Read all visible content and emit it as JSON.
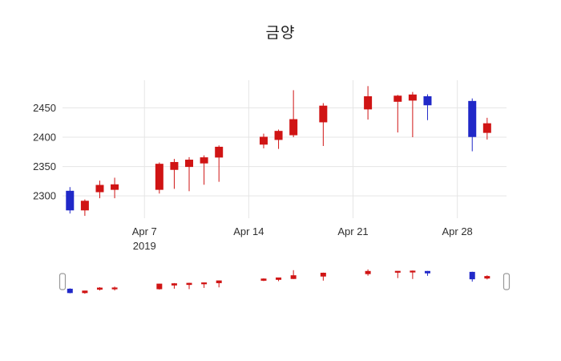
{
  "chart_data": {
    "type": "candlestick",
    "title": "금양",
    "x": [
      "2019-04-02",
      "2019-04-03",
      "2019-04-04",
      "2019-04-05",
      "2019-04-08",
      "2019-04-09",
      "2019-04-10",
      "2019-04-11",
      "2019-04-12",
      "2019-04-15",
      "2019-04-16",
      "2019-04-17",
      "2019-04-19",
      "2019-04-22",
      "2019-04-24",
      "2019-04-25",
      "2019-04-26",
      "2019-04-29",
      "2019-04-30"
    ],
    "open": [
      2308,
      2276,
      2307,
      2311,
      2311,
      2345,
      2350,
      2356,
      2366,
      2388,
      2396,
      2404,
      2426,
      2448,
      2461,
      2463,
      2469,
      2461,
      2408
    ],
    "high": [
      2315,
      2294,
      2326,
      2331,
      2357,
      2363,
      2366,
      2369,
      2386,
      2406,
      2413,
      2480,
      2458,
      2487,
      2472,
      2477,
      2473,
      2466,
      2433
    ],
    "low": [
      2270,
      2266,
      2296,
      2296,
      2304,
      2312,
      2308,
      2319,
      2324,
      2381,
      2380,
      2400,
      2385,
      2430,
      2408,
      2400,
      2429,
      2376,
      2396
    ],
    "close": [
      2276,
      2291,
      2318,
      2319,
      2354,
      2357,
      2361,
      2365,
      2383,
      2400,
      2410,
      2430,
      2453,
      2469,
      2470,
      2472,
      2455,
      2401,
      2423
    ],
    "increasing_color": "#d01414",
    "decreasing_color": "#2028c8",
    "grid_color": "#e5e5e5",
    "text_color": "#2f2f2f",
    "slider_handle_border": "#999999",
    "yticks": [
      2300,
      2350,
      2400,
      2450
    ],
    "xticks": [
      {
        "day": 7,
        "label": "Apr 7",
        "sublabel": "2019"
      },
      {
        "day": 14,
        "label": "Apr 14",
        "sublabel": ""
      },
      {
        "day": 21,
        "label": "Apr 21",
        "sublabel": ""
      },
      {
        "day": 28,
        "label": "Apr 28",
        "sublabel": ""
      }
    ],
    "ylim": [
      2262,
      2497
    ],
    "xlabel": "",
    "ylabel": "",
    "grid": true,
    "legend": false,
    "rangeslider": true
  }
}
